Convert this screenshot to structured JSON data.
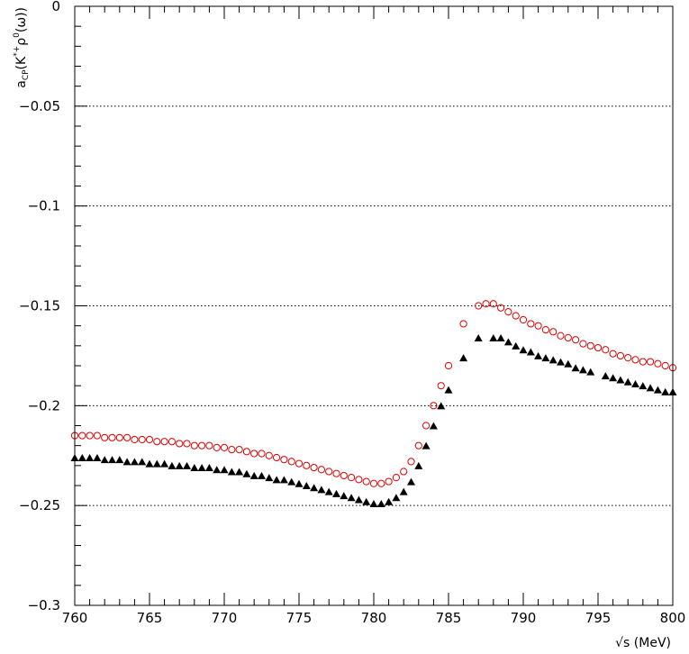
{
  "chart_data": {
    "type": "scatter",
    "title": "",
    "xlabel": "√s (MeV)",
    "ylabel": "a_CP(K*+ρ0(ω))",
    "ylabel_parts": {
      "main": "a",
      "sub": "CP",
      "paren_open": "(K",
      "sup1": "*+",
      "rho": "ρ",
      "sup2": "0",
      "paren_close": "(ω))"
    },
    "xlim": [
      760,
      800
    ],
    "ylim": [
      -0.3,
      0
    ],
    "x_ticks": [
      760,
      765,
      770,
      775,
      780,
      785,
      790,
      795,
      800
    ],
    "x_tick_labels": [
      "760",
      "765",
      "770",
      "775",
      "780",
      "785",
      "790",
      "795",
      "800"
    ],
    "y_ticks": [
      0,
      -0.05,
      -0.1,
      -0.15,
      -0.2,
      -0.25,
      -0.3
    ],
    "y_tick_labels": [
      "0",
      "−0.05",
      "−0.1",
      "−0.15",
      "−0.2",
      "−0.25",
      "−0.3"
    ],
    "grid": "horizontal dotted at labeled y ticks",
    "colors": {
      "series_open": "#e00000",
      "series_filled": "#000000",
      "grid": "#000000"
    },
    "series": [
      {
        "marker": "open-circle",
        "color": "#e00000",
        "points": [
          [
            760.0,
            -0.215
          ],
          [
            760.5,
            -0.215
          ],
          [
            761.0,
            -0.215
          ],
          [
            761.5,
            -0.215
          ],
          [
            762.0,
            -0.216
          ],
          [
            762.5,
            -0.216
          ],
          [
            763.0,
            -0.216
          ],
          [
            763.5,
            -0.216
          ],
          [
            764.0,
            -0.217
          ],
          [
            764.5,
            -0.217
          ],
          [
            765.0,
            -0.217
          ],
          [
            765.5,
            -0.218
          ],
          [
            766.0,
            -0.218
          ],
          [
            766.5,
            -0.218
          ],
          [
            767.0,
            -0.219
          ],
          [
            767.5,
            -0.219
          ],
          [
            768.0,
            -0.22
          ],
          [
            768.5,
            -0.22
          ],
          [
            769.0,
            -0.22
          ],
          [
            769.5,
            -0.221
          ],
          [
            770.0,
            -0.221
          ],
          [
            770.5,
            -0.222
          ],
          [
            771.0,
            -0.222
          ],
          [
            771.5,
            -0.223
          ],
          [
            772.0,
            -0.224
          ],
          [
            772.5,
            -0.224
          ],
          [
            773.0,
            -0.225
          ],
          [
            773.5,
            -0.226
          ],
          [
            774.0,
            -0.227
          ],
          [
            774.5,
            -0.228
          ],
          [
            775.0,
            -0.229
          ],
          [
            775.5,
            -0.23
          ],
          [
            776.0,
            -0.231
          ],
          [
            776.5,
            -0.232
          ],
          [
            777.0,
            -0.233
          ],
          [
            777.5,
            -0.234
          ],
          [
            778.0,
            -0.235
          ],
          [
            778.5,
            -0.236
          ],
          [
            779.0,
            -0.237
          ],
          [
            779.5,
            -0.238
          ],
          [
            780.0,
            -0.239
          ],
          [
            780.5,
            -0.239
          ],
          [
            781.0,
            -0.238
          ],
          [
            781.5,
            -0.236
          ],
          [
            782.0,
            -0.233
          ],
          [
            782.5,
            -0.228
          ],
          [
            783.0,
            -0.22
          ],
          [
            783.5,
            -0.21
          ],
          [
            784.0,
            -0.2
          ],
          [
            784.5,
            -0.19
          ],
          [
            785.0,
            -0.18
          ],
          [
            786.0,
            -0.159
          ],
          [
            787.0,
            -0.15
          ],
          [
            787.5,
            -0.149
          ],
          [
            788.0,
            -0.149
          ],
          [
            788.5,
            -0.151
          ],
          [
            789.0,
            -0.153
          ],
          [
            789.5,
            -0.155
          ],
          [
            790.0,
            -0.157
          ],
          [
            790.5,
            -0.159
          ],
          [
            791.0,
            -0.16
          ],
          [
            791.5,
            -0.162
          ],
          [
            792.0,
            -0.163
          ],
          [
            792.5,
            -0.165
          ],
          [
            793.0,
            -0.166
          ],
          [
            793.5,
            -0.167
          ],
          [
            794.0,
            -0.169
          ],
          [
            794.5,
            -0.17
          ],
          [
            795.0,
            -0.171
          ],
          [
            795.5,
            -0.172
          ],
          [
            796.0,
            -0.174
          ],
          [
            796.5,
            -0.175
          ],
          [
            797.0,
            -0.176
          ],
          [
            797.5,
            -0.177
          ],
          [
            798.0,
            -0.178
          ],
          [
            798.5,
            -0.178
          ],
          [
            799.0,
            -0.179
          ],
          [
            799.5,
            -0.18
          ],
          [
            800.0,
            -0.181
          ]
        ]
      },
      {
        "marker": "filled-triangle",
        "color": "#000000",
        "points": [
          [
            760.0,
            -0.226
          ],
          [
            760.5,
            -0.226
          ],
          [
            761.0,
            -0.226
          ],
          [
            761.5,
            -0.226
          ],
          [
            762.0,
            -0.227
          ],
          [
            762.5,
            -0.227
          ],
          [
            763.0,
            -0.227
          ],
          [
            763.5,
            -0.228
          ],
          [
            764.0,
            -0.228
          ],
          [
            764.5,
            -0.228
          ],
          [
            765.0,
            -0.229
          ],
          [
            765.5,
            -0.229
          ],
          [
            766.0,
            -0.229
          ],
          [
            766.5,
            -0.23
          ],
          [
            767.0,
            -0.23
          ],
          [
            767.5,
            -0.23
          ],
          [
            768.0,
            -0.231
          ],
          [
            768.5,
            -0.231
          ],
          [
            769.0,
            -0.231
          ],
          [
            769.5,
            -0.232
          ],
          [
            770.0,
            -0.232
          ],
          [
            770.5,
            -0.233
          ],
          [
            771.0,
            -0.233
          ],
          [
            771.5,
            -0.234
          ],
          [
            772.0,
            -0.235
          ],
          [
            772.5,
            -0.235
          ],
          [
            773.0,
            -0.236
          ],
          [
            773.5,
            -0.237
          ],
          [
            774.0,
            -0.237
          ],
          [
            774.5,
            -0.238
          ],
          [
            775.0,
            -0.239
          ],
          [
            775.5,
            -0.24
          ],
          [
            776.0,
            -0.241
          ],
          [
            776.5,
            -0.242
          ],
          [
            777.0,
            -0.243
          ],
          [
            777.5,
            -0.244
          ],
          [
            778.0,
            -0.245
          ],
          [
            778.5,
            -0.246
          ],
          [
            779.0,
            -0.247
          ],
          [
            779.5,
            -0.248
          ],
          [
            780.0,
            -0.249
          ],
          [
            780.5,
            -0.249
          ],
          [
            781.0,
            -0.248
          ],
          [
            781.5,
            -0.246
          ],
          [
            782.0,
            -0.243
          ],
          [
            782.5,
            -0.238
          ],
          [
            783.0,
            -0.23
          ],
          [
            783.5,
            -0.22
          ],
          [
            784.0,
            -0.21
          ],
          [
            784.5,
            -0.2
          ],
          [
            785.0,
            -0.192
          ],
          [
            786.0,
            -0.176
          ],
          [
            787.0,
            -0.166
          ],
          [
            788.0,
            -0.166
          ],
          [
            788.5,
            -0.166
          ],
          [
            789.0,
            -0.168
          ],
          [
            789.5,
            -0.17
          ],
          [
            790.0,
            -0.172
          ],
          [
            790.5,
            -0.173
          ],
          [
            791.0,
            -0.175
          ],
          [
            791.5,
            -0.176
          ],
          [
            792.0,
            -0.177
          ],
          [
            792.5,
            -0.178
          ],
          [
            793.0,
            -0.179
          ],
          [
            793.5,
            -0.181
          ],
          [
            794.0,
            -0.182
          ],
          [
            794.5,
            -0.183
          ],
          [
            795.5,
            -0.185
          ],
          [
            796.0,
            -0.186
          ],
          [
            796.5,
            -0.187
          ],
          [
            797.0,
            -0.188
          ],
          [
            797.5,
            -0.189
          ],
          [
            798.0,
            -0.19
          ],
          [
            798.5,
            -0.191
          ],
          [
            799.0,
            -0.192
          ],
          [
            799.5,
            -0.193
          ],
          [
            800.0,
            -0.193
          ]
        ]
      }
    ]
  }
}
